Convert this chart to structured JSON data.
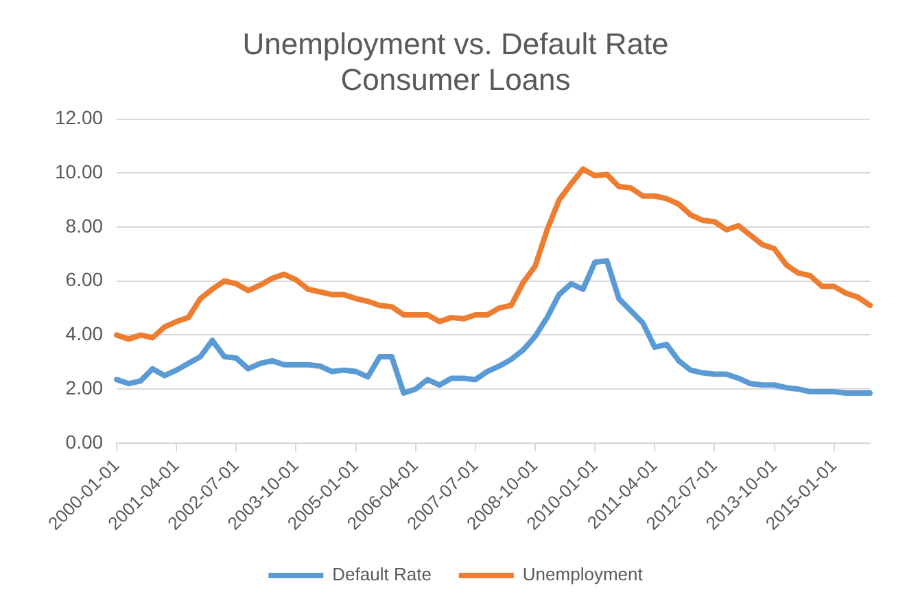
{
  "chart_data": {
    "type": "line",
    "title": [
      "Unemployment vs. Default Rate",
      "Consumer Loans"
    ],
    "categories": [
      "2000-01-01",
      null,
      null,
      null,
      null,
      "2001-04-01",
      null,
      null,
      null,
      null,
      "2002-07-01",
      null,
      null,
      null,
      null,
      "2003-10-01",
      null,
      null,
      null,
      null,
      "2005-01-01",
      null,
      null,
      null,
      null,
      "2006-04-01",
      null,
      null,
      null,
      null,
      "2007-07-01",
      null,
      null,
      null,
      null,
      "2008-10-01",
      null,
      null,
      null,
      null,
      "2010-01-01",
      null,
      null,
      null,
      null,
      "2011-04-01",
      null,
      null,
      null,
      null,
      "2012-07-01",
      null,
      null,
      null,
      null,
      "2013-10-01",
      null,
      null,
      null,
      null,
      "2015-01-01",
      null,
      null,
      null
    ],
    "series": [
      {
        "name": "Default Rate",
        "color": "#5b9bd5",
        "values": [
          2.35,
          2.2,
          2.3,
          2.75,
          2.5,
          2.7,
          2.95,
          3.2,
          3.8,
          3.2,
          3.15,
          2.75,
          2.95,
          3.05,
          2.9,
          2.9,
          2.9,
          2.85,
          2.65,
          2.7,
          2.65,
          2.45,
          3.2,
          3.2,
          1.85,
          2.0,
          2.35,
          2.15,
          2.4,
          2.4,
          2.35,
          2.65,
          2.85,
          3.1,
          3.45,
          3.95,
          4.65,
          5.5,
          5.9,
          5.7,
          6.7,
          6.75,
          5.35,
          4.9,
          4.45,
          3.55,
          3.65,
          3.05,
          2.7,
          2.6,
          2.55,
          2.55,
          2.4,
          2.2,
          2.15,
          2.15,
          2.05,
          2.0,
          1.9,
          1.9,
          1.9,
          1.85,
          1.85,
          1.85
        ]
      },
      {
        "name": "Unemployment",
        "color": "#ed7d31",
        "values": [
          4.0,
          3.85,
          4.0,
          3.9,
          4.3,
          4.5,
          4.65,
          5.35,
          5.7,
          6.0,
          5.9,
          5.65,
          5.85,
          6.1,
          6.25,
          6.05,
          5.7,
          5.6,
          5.5,
          5.5,
          5.35,
          5.25,
          5.1,
          5.05,
          4.75,
          4.75,
          4.75,
          4.5,
          4.65,
          4.6,
          4.75,
          4.75,
          5.0,
          5.1,
          5.95,
          6.55,
          7.9,
          9.0,
          9.6,
          10.15,
          9.9,
          9.95,
          9.5,
          9.45,
          9.15,
          9.15,
          9.05,
          8.85,
          8.45,
          8.25,
          8.2,
          7.9,
          8.05,
          7.7,
          7.35,
          7.2,
          6.6,
          6.3,
          6.2,
          5.8,
          5.8,
          5.55,
          5.4,
          5.1
        ]
      }
    ],
    "ylim": [
      0,
      12
    ],
    "yticks": [
      {
        "value": 0,
        "label": "0.00"
      },
      {
        "value": 2,
        "label": "2.00"
      },
      {
        "value": 4,
        "label": "4.00"
      },
      {
        "value": 6,
        "label": "6.00"
      },
      {
        "value": 8,
        "label": "8.00"
      },
      {
        "value": 10,
        "label": "10.00"
      },
      {
        "value": 12,
        "label": "12.00"
      }
    ],
    "grid": "y",
    "legend": "bottom",
    "marker": "none",
    "line_style": "solid"
  }
}
